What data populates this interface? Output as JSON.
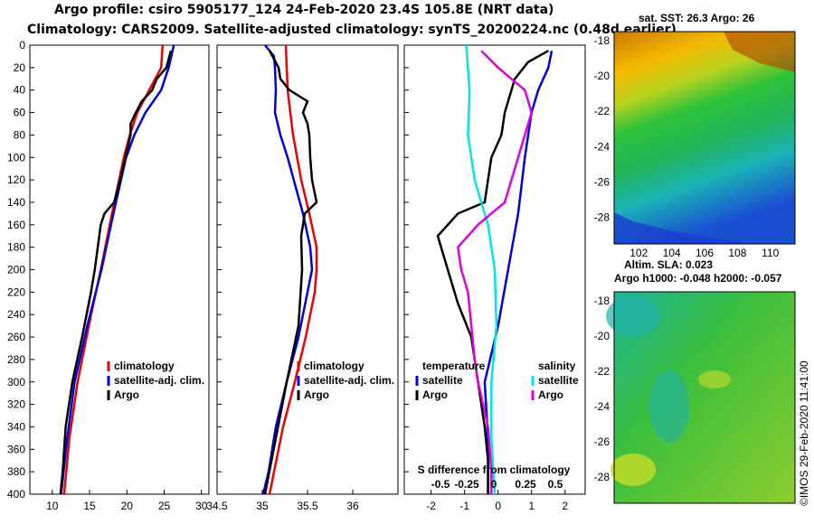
{
  "header": {
    "line1": "Argo profile: csiro 5905177_124 24-Feb-2020 23.4S 105.8E (NRT data)",
    "line2": "Climatology: CARS2009. Satellite-adjusted climatology: synTS_20200224.nc (0.48d earlier)"
  },
  "colors": {
    "climatology": "#ee0000",
    "satellite": "#0000dd",
    "argo": "#000000",
    "sat_diff": "#00e5e5",
    "argo_diff": "#dd00dd"
  },
  "chart_data": [
    {
      "type": "line",
      "id": "temperature_profile",
      "xlim": [
        7,
        31
      ],
      "ylim": [
        400,
        0
      ],
      "xticks": [
        "10",
        "15",
        "20",
        "25",
        "30"
      ],
      "yticks": [
        "0",
        "20",
        "40",
        "60",
        "80",
        "100",
        "120",
        "140",
        "160",
        "180",
        "200",
        "220",
        "240",
        "260",
        "280",
        "300",
        "320",
        "340",
        "360",
        "380",
        "400"
      ],
      "legend": [
        "climatology",
        "satellite-adj. clim.",
        "Argo"
      ],
      "series": [
        {
          "name": "climatology",
          "color": "#ee0000",
          "depth": [
            0,
            20,
            40,
            60,
            80,
            100,
            150,
            200,
            250,
            300,
            350,
            400
          ],
          "values": [
            24.8,
            24.6,
            23.0,
            21.4,
            20.4,
            19.6,
            18.0,
            16.5,
            14.9,
            13.4,
            12.3,
            11.6
          ]
        },
        {
          "name": "satellite-adj. clim.",
          "color": "#0000dd",
          "depth": [
            0,
            20,
            40,
            60,
            80,
            100,
            150,
            200,
            250,
            300,
            350,
            400
          ],
          "values": [
            26.3,
            25.6,
            24.6,
            22.5,
            21.0,
            19.9,
            18.2,
            16.6,
            14.7,
            13.0,
            12.0,
            11.2
          ]
        },
        {
          "name": "Argo",
          "color": "#000000",
          "depth": [
            5,
            20,
            30,
            40,
            50,
            60,
            70,
            80,
            100,
            120,
            140,
            150,
            160,
            180,
            200,
            220,
            260,
            300,
            340,
            380,
            400
          ],
          "values": [
            25.9,
            25.3,
            24.0,
            23.4,
            22.0,
            21.2,
            20.5,
            20.5,
            19.8,
            19.1,
            18.3,
            17.0,
            16.5,
            16.1,
            15.7,
            15.2,
            14.0,
            12.7,
            11.8,
            11.4,
            11.1
          ]
        }
      ]
    },
    {
      "type": "line",
      "id": "salinity_profile",
      "xlim": [
        34.5,
        36.5
      ],
      "ylim": [
        400,
        0
      ],
      "xticks": [
        "34.5",
        "35",
        "35.5",
        "36"
      ],
      "legend": [
        "climatology",
        "satellite-adj. clim.",
        "Argo"
      ],
      "series": [
        {
          "name": "climatology",
          "color": "#ee0000",
          "depth": [
            0,
            40,
            80,
            120,
            150,
            180,
            200,
            220,
            260,
            300,
            340,
            380,
            400
          ],
          "values": [
            35.26,
            35.28,
            35.34,
            35.43,
            35.52,
            35.6,
            35.6,
            35.58,
            35.48,
            35.36,
            35.23,
            35.13,
            35.08
          ]
        },
        {
          "name": "satellite-adj. clim.",
          "color": "#0000dd",
          "depth": [
            0,
            10,
            20,
            40,
            60,
            80,
            100,
            150,
            180,
            200,
            220,
            260,
            300,
            340,
            380,
            400
          ],
          "values": [
            35.03,
            35.13,
            35.14,
            35.15,
            35.14,
            35.2,
            35.28,
            35.45,
            35.53,
            35.55,
            35.5,
            35.4,
            35.27,
            35.15,
            35.07,
            35.01
          ]
        },
        {
          "name": "Argo",
          "color": "#000000",
          "depth": [
            5,
            20,
            30,
            40,
            50,
            60,
            70,
            80,
            100,
            120,
            140,
            150,
            170,
            200,
            250,
            300,
            350,
            400
          ],
          "values": [
            35.08,
            35.18,
            35.2,
            35.3,
            35.5,
            35.45,
            35.5,
            35.52,
            35.53,
            35.55,
            35.6,
            35.47,
            35.43,
            35.44,
            35.4,
            35.27,
            35.15,
            35.03
          ]
        }
      ]
    },
    {
      "type": "line",
      "id": "difference_profile",
      "xlabel": "S difference from climatology",
      "xlim": [
        -2.8,
        2.6
      ],
      "ylim": [
        400,
        0
      ],
      "xticks": [
        "-2",
        "-1",
        "0",
        "1",
        "2"
      ],
      "xticks_top": [
        "-0.5",
        "-0.25",
        "0",
        "0.25",
        "0.5"
      ],
      "legend_groups": [
        {
          "title": "temperature",
          "items": [
            "satellite",
            "Argo"
          ]
        },
        {
          "title": "salinity",
          "items": [
            "satellite",
            "Argo"
          ]
        }
      ],
      "series": [
        {
          "name": "temperature satellite",
          "color": "#0000dd",
          "depth": [
            5,
            20,
            40,
            60,
            80,
            100,
            150,
            200,
            250,
            300,
            350,
            400
          ],
          "values": [
            1.6,
            1.5,
            1.2,
            1.0,
            0.9,
            0.8,
            0.6,
            0.3,
            0.0,
            -0.4,
            -0.3,
            -0.3
          ]
        },
        {
          "name": "temperature Argo",
          "color": "#000000",
          "depth": [
            5,
            15,
            30,
            50,
            60,
            80,
            100,
            140,
            150,
            170,
            200,
            230,
            260,
            300,
            340,
            370,
            400
          ],
          "values": [
            1.5,
            0.9,
            0.5,
            0.3,
            0.2,
            0.1,
            -0.2,
            -0.4,
            -1.2,
            -1.8,
            -1.5,
            -1.2,
            -0.8,
            -0.6,
            -0.4,
            -0.3,
            -0.3
          ]
        },
        {
          "name": "salinity satellite",
          "color": "#00e5e5",
          "depth": [
            0,
            40,
            80,
            120,
            160,
            200,
            250,
            300,
            350,
            400
          ],
          "values": [
            -0.95,
            -0.85,
            -0.9,
            -0.7,
            -0.3,
            -0.1,
            -0.05,
            -0.2,
            -0.2,
            -0.1
          ]
        },
        {
          "name": "salinity Argo",
          "color": "#dd00dd",
          "depth": [
            5,
            20,
            40,
            60,
            80,
            100,
            140,
            160,
            180,
            200,
            220,
            250,
            280,
            300,
            340,
            380,
            400
          ],
          "values": [
            -0.5,
            0,
            0.8,
            1.0,
            0.8,
            0.6,
            0.2,
            -0.6,
            -1.2,
            -1.1,
            -0.9,
            -0.8,
            -0.7,
            -0.6,
            -0.3,
            -0.2,
            -0.2
          ]
        }
      ]
    },
    {
      "type": "heatmap",
      "id": "sst_map",
      "title": "sat. SST: 26.3 Argo: 26",
      "xlim": [
        100.5,
        111.5
      ],
      "ylim": [
        -29.5,
        -17.5
      ],
      "xticks": [
        "102",
        "104",
        "106",
        "108",
        "110"
      ],
      "yticks": [
        "-18",
        "-20",
        "-22",
        "-24",
        "-26",
        "-28"
      ]
    },
    {
      "type": "heatmap",
      "id": "sla_map",
      "title": "Altim. SLA: 0.023",
      "subtitle": "Argo h1000: -0.048 h2000: -0.057",
      "xlim": [
        100.5,
        111.5
      ],
      "ylim": [
        -29.5,
        -17.5
      ],
      "yticks": [
        "-18",
        "-20",
        "-22",
        "-24",
        "-26",
        "-28"
      ]
    }
  ],
  "footer": {
    "stamp": "©IMOS 29-Feb-2020 11:41:00"
  }
}
